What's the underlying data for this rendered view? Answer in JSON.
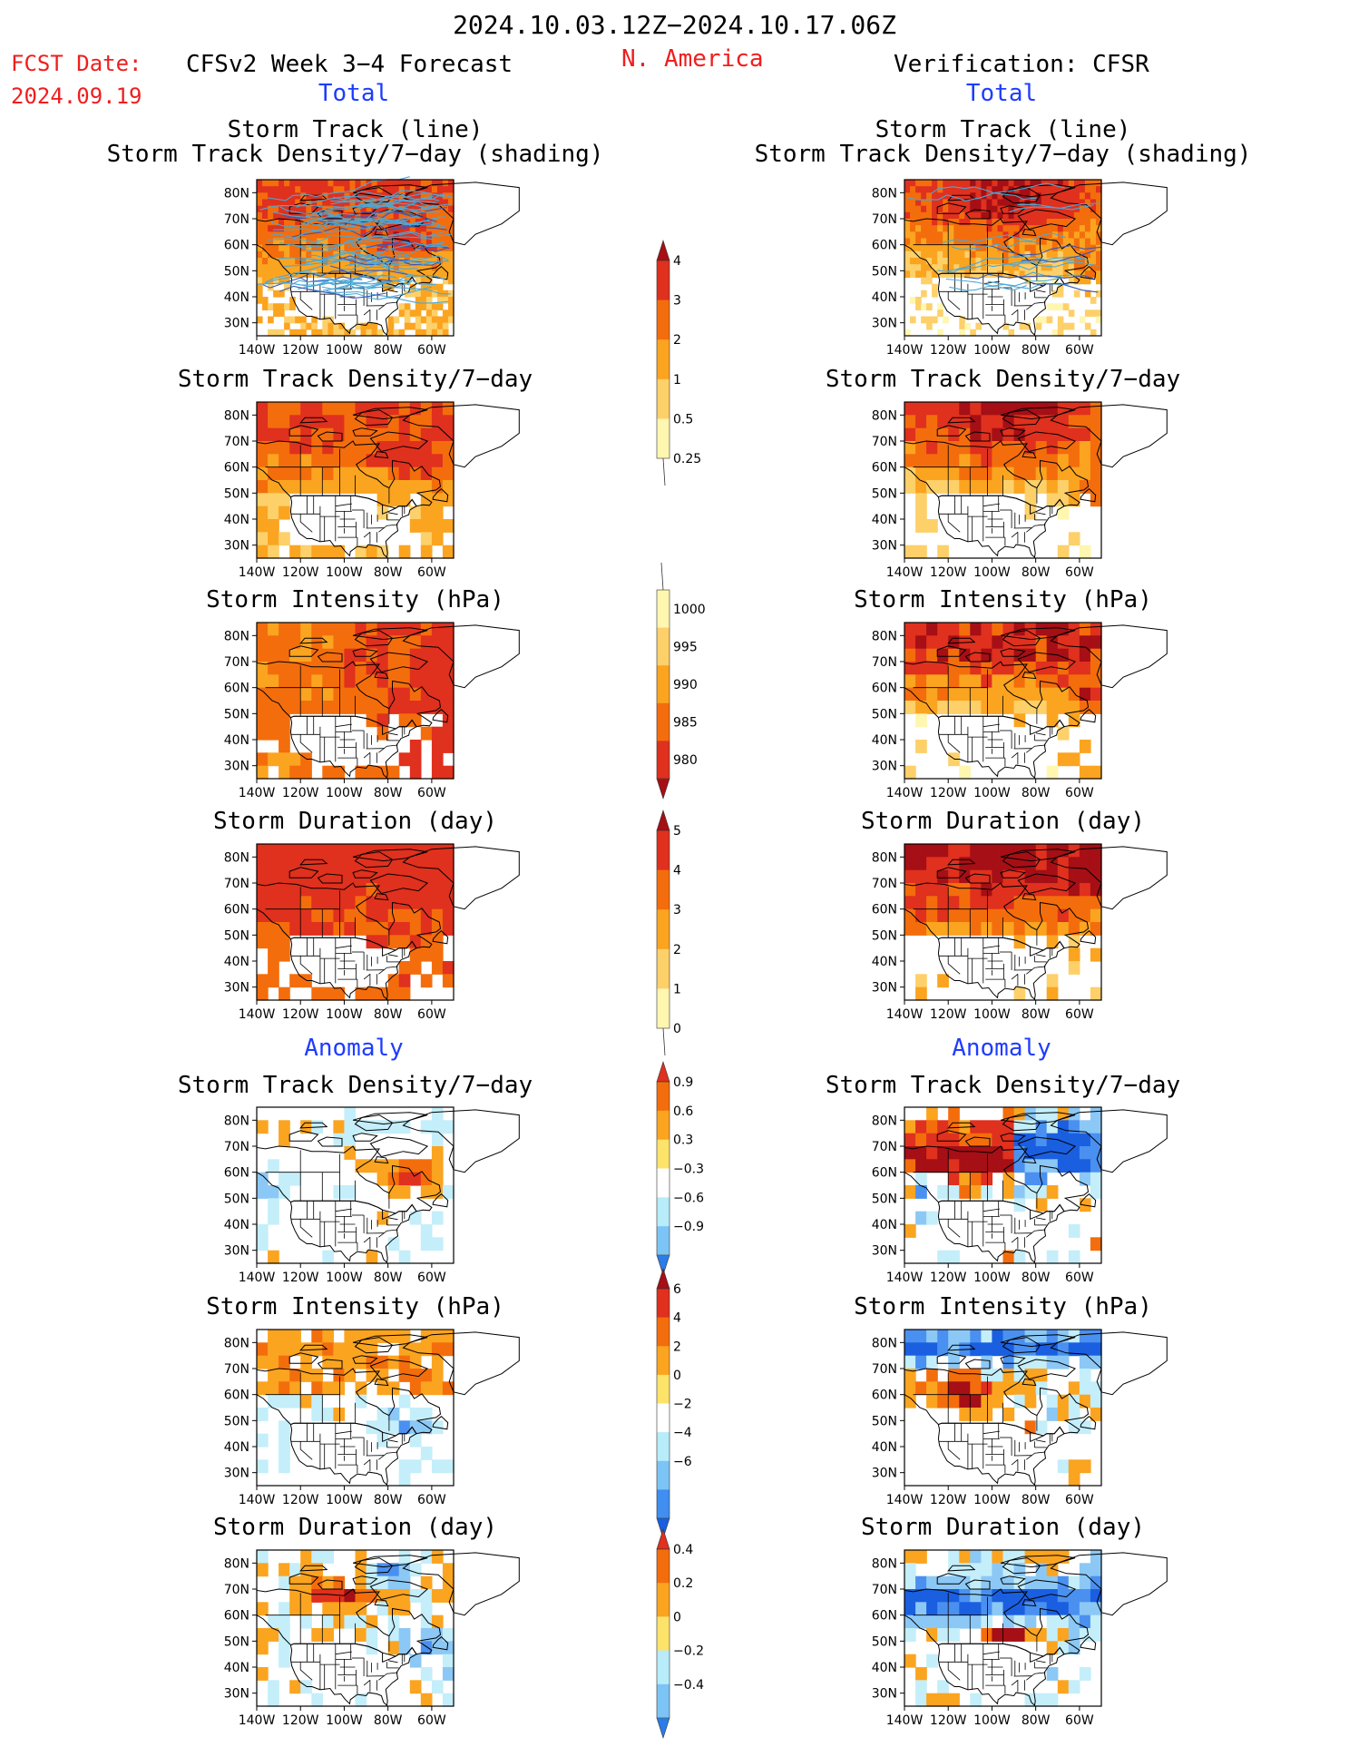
{
  "header": {
    "period": "2024.10.03.12Z−2024.10.17.06Z",
    "fcst_label": "FCST Date:",
    "fcst_date": "2024.09.19",
    "model": "CFSv2 Week 3−4 Forecast",
    "region": "N. America",
    "verification": "Verification: CFSR",
    "left_section": "Total",
    "right_section": "Total",
    "left_anomaly": "Anomaly",
    "right_anomaly": "Anomaly"
  },
  "axes": {
    "lat_ticks": [
      "80N",
      "70N",
      "60N",
      "50N",
      "40N",
      "30N"
    ],
    "lon_ticks": [
      "140W",
      "120W",
      "100W",
      "80W",
      "60W"
    ]
  },
  "colors": {
    "ocean_background": "#ffffff",
    "coastline": "#000000",
    "track_line": "#4aa8d8",
    "track_line_dark": "#3a56b8"
  },
  "colorbars": [
    {
      "id": "density",
      "labels": [
        "4",
        "3",
        "2",
        "1",
        "0.5",
        "0.25"
      ],
      "colors": [
        "#a50f15",
        "#e0301e",
        "#f46d0c",
        "#fba420",
        "#fdd06a",
        "#fff6b0"
      ]
    },
    {
      "id": "intensity",
      "labels": [
        "1000",
        "995",
        "990",
        "985",
        "980"
      ],
      "colors": [
        "#fff6b0",
        "#fdd06a",
        "#fba420",
        "#f46d0c",
        "#e0301e",
        "#a50f15"
      ]
    },
    {
      "id": "duration",
      "labels": [
        "5",
        "4",
        "3",
        "2",
        "1",
        "0"
      ],
      "colors": [
        "#a50f15",
        "#e0301e",
        "#f46d0c",
        "#fba420",
        "#fdd06a",
        "#fff6b0"
      ]
    },
    {
      "id": "density_anom",
      "labels": [
        "0.9",
        "0.6",
        "0.3",
        "−0.3",
        "−0.6",
        "−0.9"
      ],
      "colors": [
        "#e0301e",
        "#f46d0c",
        "#fba420",
        "#fde36a",
        "#ffffff",
        "#b8ecfa",
        "#7cc4f5",
        "#2a7de8"
      ]
    },
    {
      "id": "intensity_anom",
      "labels": [
        "6",
        "4",
        "2",
        "0",
        "−2",
        "−4",
        "−6"
      ],
      "colors": [
        "#a50f15",
        "#e0301e",
        "#f46d0c",
        "#fba420",
        "#fde36a",
        "#ffffff",
        "#b8ecfa",
        "#7cc4f5",
        "#3f8ef0",
        "#1a5fe0"
      ]
    },
    {
      "id": "duration_anom",
      "labels": [
        "0.4",
        "0.2",
        "0",
        "−0.2",
        "−0.4"
      ],
      "colors": [
        "#e0301e",
        "#f46d0c",
        "#fba420",
        "#fde36a",
        "#b8ecfa",
        "#7cc4f5",
        "#2a7de8"
      ]
    }
  ],
  "chart_data": [
    {
      "type": "heatmap",
      "column": "forecast",
      "title": "Storm Track (line)\nStorm Track Density/7−day (shading)",
      "variable": "Storm Track Density/7−day",
      "colorbar": "density",
      "overlay": "storm track lines",
      "xlim": [
        "140W",
        "50W"
      ],
      "ylim": [
        "25N",
        "85N"
      ]
    },
    {
      "type": "heatmap",
      "column": "verification",
      "title": "Storm Track (line)\nStorm Track Density/7−day (shading)",
      "variable": "Storm Track Density/7−day",
      "colorbar": "density",
      "overlay": "storm track lines",
      "xlim": [
        "140W",
        "50W"
      ],
      "ylim": [
        "25N",
        "85N"
      ]
    },
    {
      "type": "heatmap",
      "column": "forecast",
      "title": "Storm Track Density/7−day",
      "colorbar": "density",
      "xlim": [
        "140W",
        "50W"
      ],
      "ylim": [
        "25N",
        "85N"
      ]
    },
    {
      "type": "heatmap",
      "column": "verification",
      "title": "Storm Track Density/7−day",
      "colorbar": "density",
      "xlim": [
        "140W",
        "50W"
      ],
      "ylim": [
        "25N",
        "85N"
      ]
    },
    {
      "type": "heatmap",
      "column": "forecast",
      "title": "Storm Intensity (hPa)",
      "colorbar": "intensity",
      "xlim": [
        "140W",
        "50W"
      ],
      "ylim": [
        "25N",
        "85N"
      ]
    },
    {
      "type": "heatmap",
      "column": "verification",
      "title": "Storm Intensity (hPa)",
      "colorbar": "intensity",
      "xlim": [
        "140W",
        "50W"
      ],
      "ylim": [
        "25N",
        "85N"
      ]
    },
    {
      "type": "heatmap",
      "column": "forecast",
      "title": "Storm Duration (day)",
      "colorbar": "duration",
      "xlim": [
        "140W",
        "50W"
      ],
      "ylim": [
        "25N",
        "85N"
      ]
    },
    {
      "type": "heatmap",
      "column": "verification",
      "title": "Storm Duration (day)",
      "colorbar": "duration",
      "xlim": [
        "140W",
        "50W"
      ],
      "ylim": [
        "25N",
        "85N"
      ]
    },
    {
      "type": "heatmap",
      "column": "forecast",
      "section": "Anomaly",
      "title": "Storm Track Density/7−day",
      "colorbar": "density_anom",
      "xlim": [
        "140W",
        "50W"
      ],
      "ylim": [
        "25N",
        "85N"
      ]
    },
    {
      "type": "heatmap",
      "column": "verification",
      "section": "Anomaly",
      "title": "Storm Track Density/7−day",
      "colorbar": "density_anom",
      "xlim": [
        "140W",
        "50W"
      ],
      "ylim": [
        "25N",
        "85N"
      ]
    },
    {
      "type": "heatmap",
      "column": "forecast",
      "section": "Anomaly",
      "title": "Storm Intensity (hPa)",
      "colorbar": "intensity_anom",
      "xlim": [
        "140W",
        "50W"
      ],
      "ylim": [
        "25N",
        "85N"
      ]
    },
    {
      "type": "heatmap",
      "column": "verification",
      "section": "Anomaly",
      "title": "Storm Intensity (hPa)",
      "colorbar": "intensity_anom",
      "xlim": [
        "140W",
        "50W"
      ],
      "ylim": [
        "25N",
        "85N"
      ]
    },
    {
      "type": "heatmap",
      "column": "forecast",
      "section": "Anomaly",
      "title": "Storm Duration (day)",
      "colorbar": "duration_anom",
      "xlim": [
        "140W",
        "50W"
      ],
      "ylim": [
        "25N",
        "85N"
      ]
    },
    {
      "type": "heatmap",
      "column": "verification",
      "section": "Anomaly",
      "title": "Storm Duration (day)",
      "colorbar": "duration_anom",
      "xlim": [
        "140W",
        "50W"
      ],
      "ylim": [
        "25N",
        "85N"
      ]
    }
  ]
}
